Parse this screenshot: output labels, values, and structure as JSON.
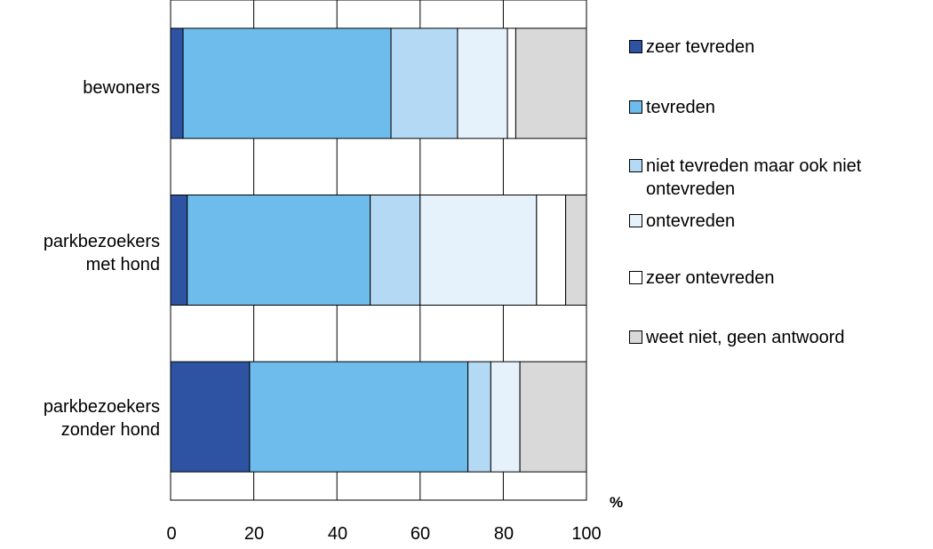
{
  "chart_data": {
    "type": "bar",
    "orientation": "horizontal",
    "stacked": true,
    "categories": [
      [
        "bewoners"
      ],
      [
        "parkbezoekers",
        "met hond"
      ],
      [
        "parkbezoekers",
        "zonder hond"
      ]
    ],
    "series": [
      {
        "name": "zeer tevreden",
        "color": "#2e53a3",
        "values": [
          3,
          4,
          19
        ]
      },
      {
        "name": "tevreden",
        "color": "#6ebcec",
        "values": [
          50,
          44,
          52.5
        ]
      },
      {
        "name": "niet tevreden maar ook niet ontevreden",
        "color": "#b3d9f4",
        "values": [
          16,
          12,
          5.5
        ]
      },
      {
        "name": "ontevreden",
        "color": "#e5f1fb",
        "values": [
          12,
          28,
          7
        ]
      },
      {
        "name": "zeer ontevreden",
        "color": "#ffffff",
        "values": [
          2,
          7,
          0
        ]
      },
      {
        "name": "weet niet, geen antwoord",
        "color": "#d9d9d9",
        "values": [
          17,
          5,
          16
        ]
      }
    ],
    "x_ticks": [
      "0",
      "20",
      "40",
      "60",
      "80",
      "100"
    ],
    "xlim": [
      0,
      100
    ],
    "xlabel": "%",
    "grid": true,
    "legend_position": "right"
  }
}
